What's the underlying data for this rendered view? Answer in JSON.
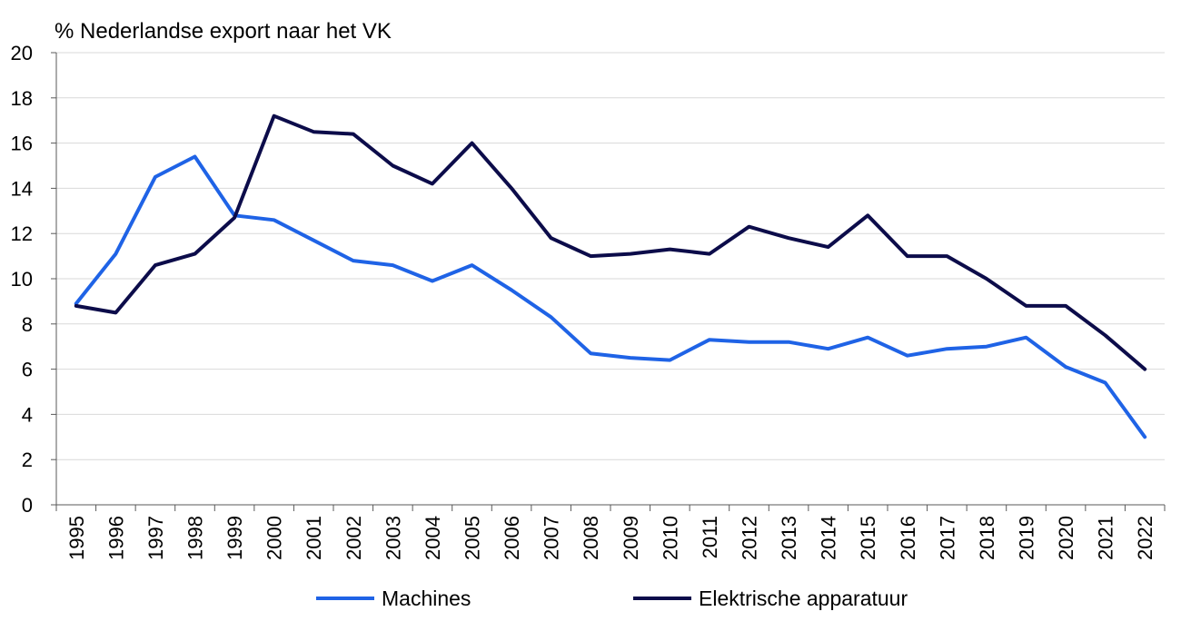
{
  "chart_data": {
    "type": "line",
    "ylabel": "% Nederlandse export naar het VK",
    "x": [
      "1995",
      "1996",
      "1997",
      "1998",
      "1999",
      "2000",
      "2001",
      "2002",
      "2003",
      "2004",
      "2005",
      "2006",
      "2007",
      "2008",
      "2009",
      "2010",
      "2011",
      "2012",
      "2013",
      "2014",
      "2015",
      "2016",
      "2017",
      "2018",
      "2019",
      "2020",
      "2021",
      "2022"
    ],
    "ylim": [
      0,
      20
    ],
    "yticks": [
      0,
      2,
      4,
      6,
      8,
      10,
      12,
      14,
      16,
      18,
      20
    ],
    "grid": true,
    "legend_position": "bottom",
    "series": [
      {
        "name": "Machines",
        "color": "#1f63e6",
        "values": [
          8.9,
          11.1,
          14.5,
          15.4,
          12.8,
          12.6,
          11.7,
          10.8,
          10.6,
          9.9,
          10.6,
          9.5,
          8.3,
          6.7,
          6.5,
          6.4,
          7.3,
          7.2,
          7.2,
          6.9,
          7.4,
          6.6,
          6.9,
          7.0,
          7.4,
          6.1,
          5.4,
          3.0
        ]
      },
      {
        "name": "Elektrische apparatuur",
        "color": "#0c0c4a",
        "values": [
          8.8,
          8.5,
          10.6,
          11.1,
          12.7,
          17.2,
          16.5,
          16.4,
          15.0,
          14.2,
          16.0,
          14.0,
          11.8,
          11.0,
          11.1,
          11.3,
          11.1,
          12.3,
          11.8,
          11.4,
          12.8,
          11.0,
          11.0,
          10.0,
          8.8,
          8.8,
          7.5,
          6.0
        ]
      }
    ]
  }
}
